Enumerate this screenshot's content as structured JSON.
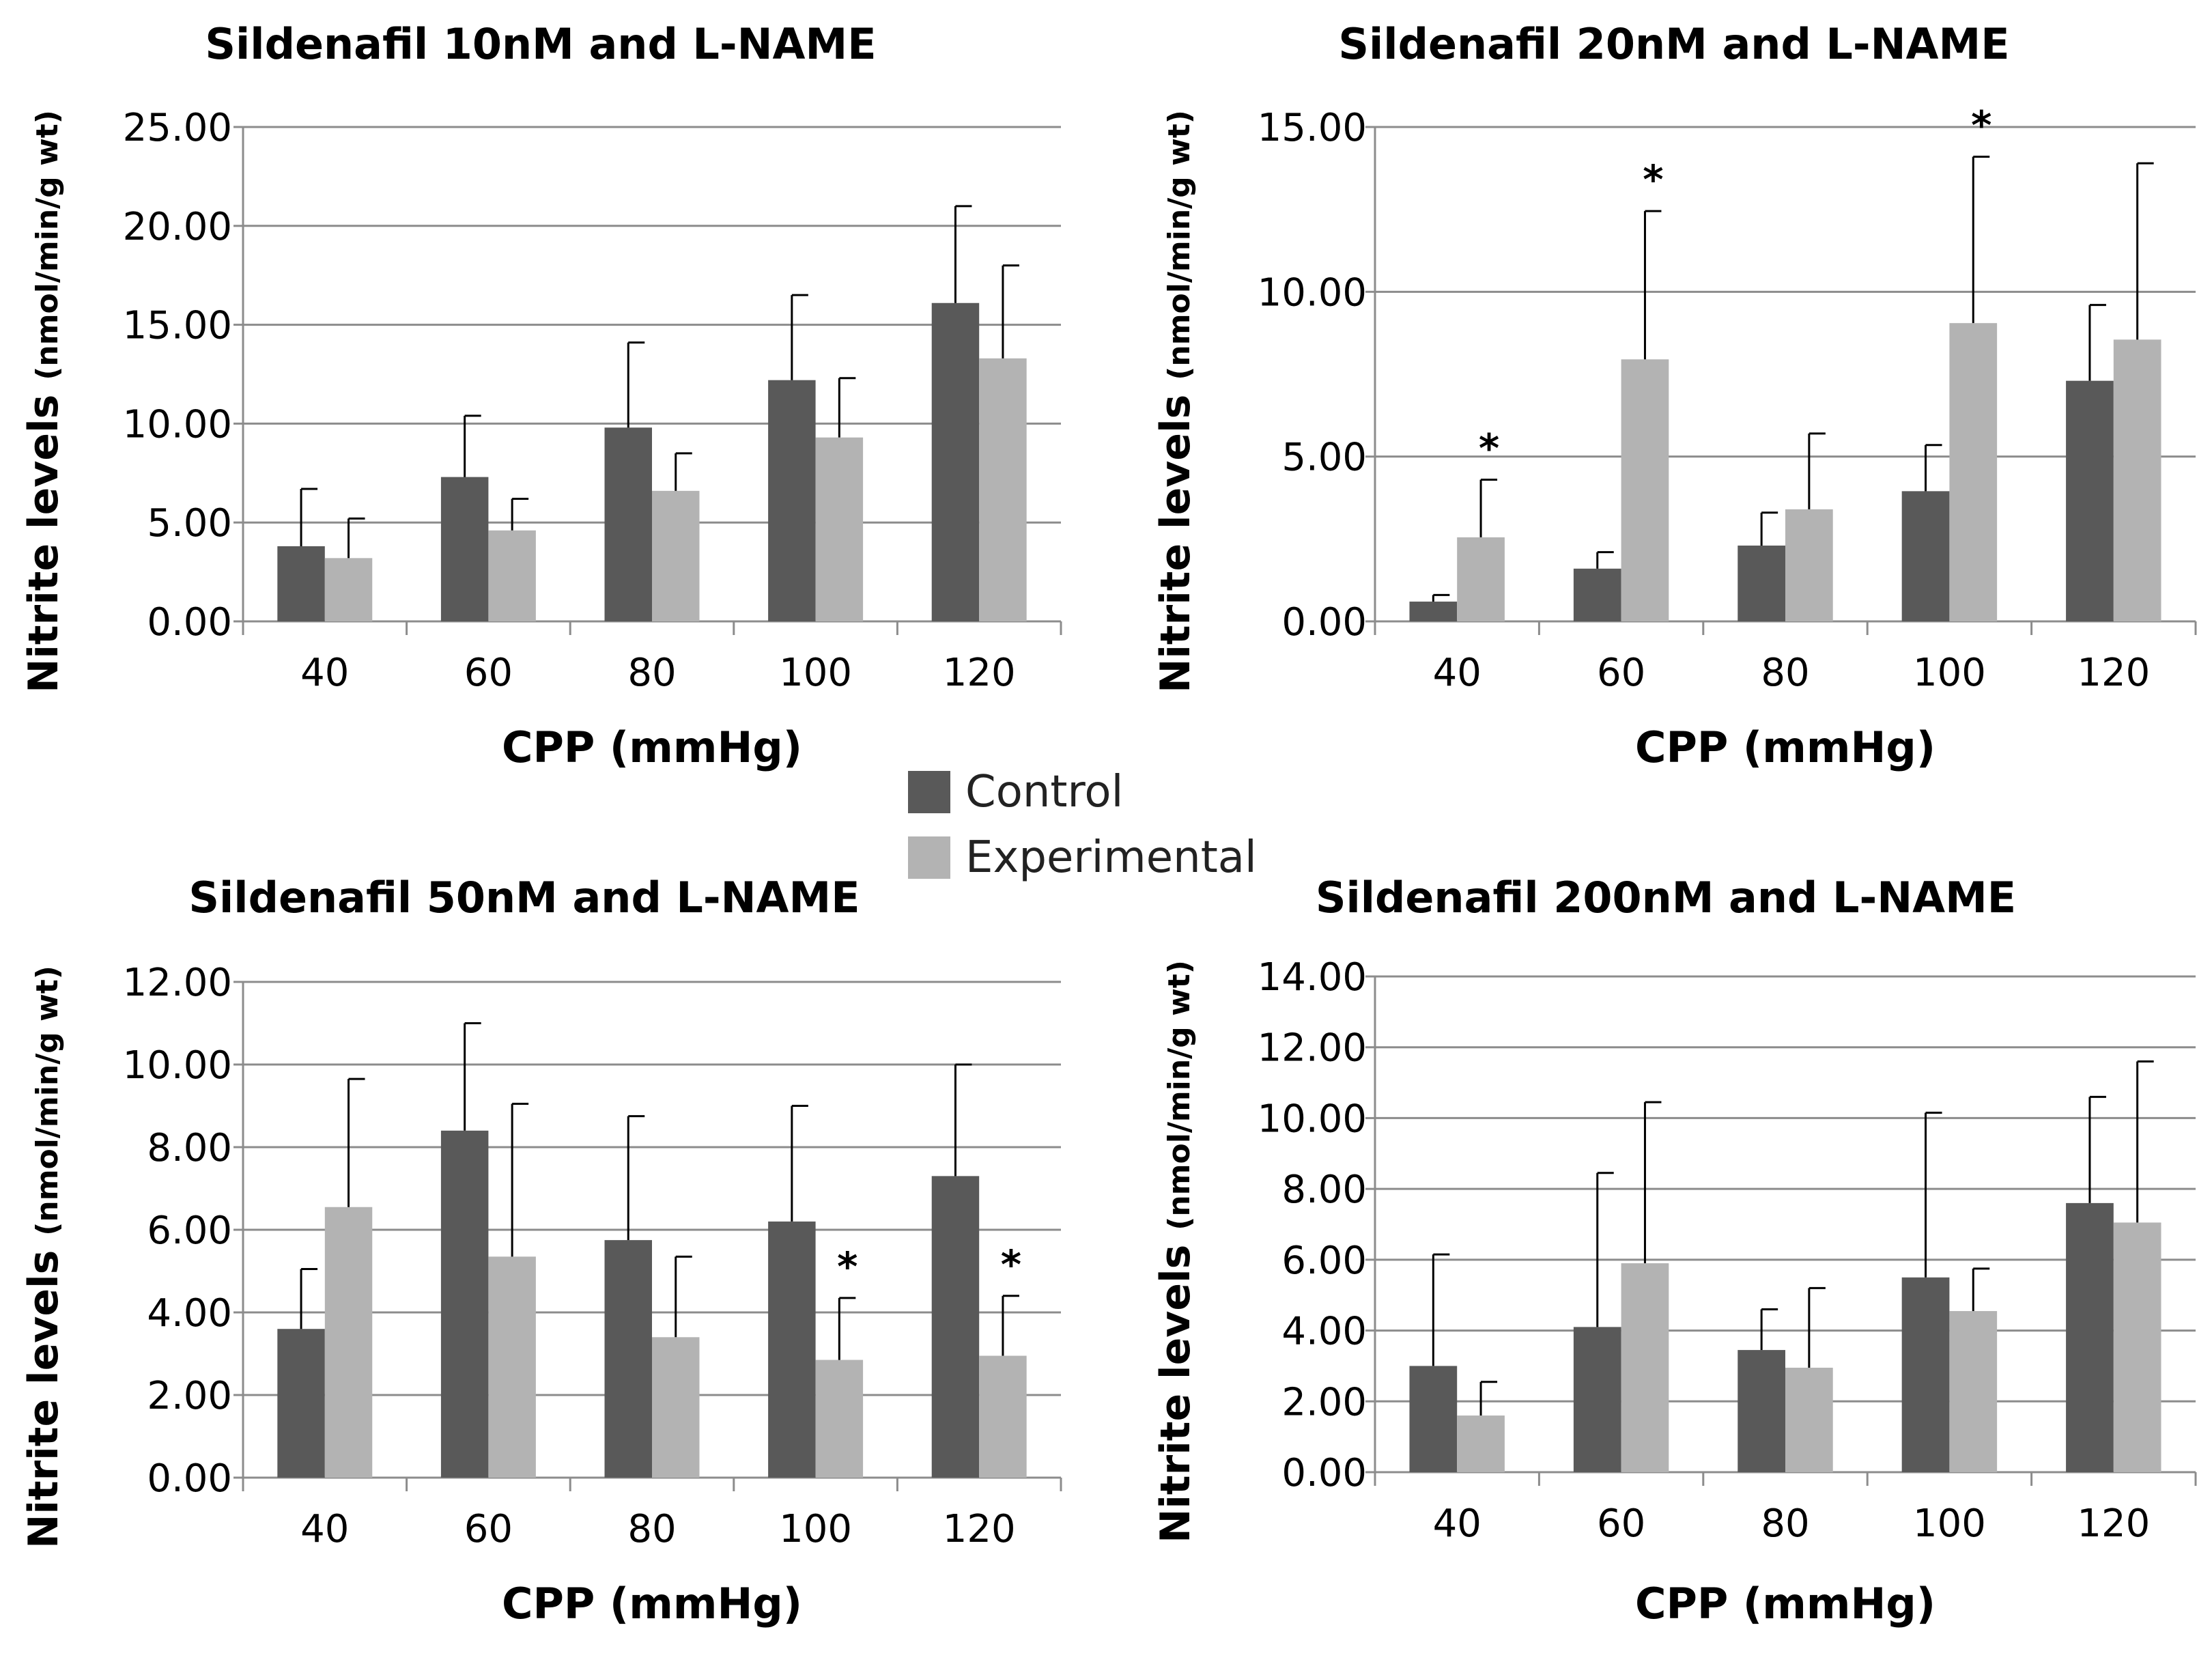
{
  "colors": {
    "control": "#595959",
    "experimental": "#b3b3b3",
    "grid": "#8c8c8c",
    "axis": "#8c8c8c",
    "text": "#000000"
  },
  "legend": {
    "control_label": "Control",
    "experimental_label": "Experimental"
  },
  "chart_data": [
    {
      "type": "bar",
      "title": "Sildenafil 10nM and L-NAME",
      "xlabel": "CPP (mmHg)",
      "ylabel_main": "Nitrite levels",
      "ylabel_unit": "(nmol/min/g wt)",
      "categories": [
        "40",
        "60",
        "80",
        "100",
        "120"
      ],
      "ylim": [
        0,
        25
      ],
      "yticks": [
        "0.00",
        "5.00",
        "10.00",
        "15.00",
        "20.00",
        "25.00"
      ],
      "series": [
        {
          "name": "Control",
          "values": [
            3.8,
            7.3,
            9.8,
            12.2,
            16.1
          ],
          "errors": [
            2.9,
            3.1,
            4.3,
            4.3,
            4.9
          ]
        },
        {
          "name": "Experimental",
          "values": [
            3.2,
            4.6,
            6.6,
            9.3,
            13.3
          ],
          "errors": [
            2.0,
            1.6,
            1.9,
            3.0,
            4.7
          ]
        }
      ],
      "annotations": []
    },
    {
      "type": "bar",
      "title": "Sildenafil 20nM and L-NAME",
      "xlabel": "CPP (mmHg)",
      "ylabel_main": "Nitrite levels",
      "ylabel_unit": "(nmol/min/g wt)",
      "categories": [
        "40",
        "60",
        "80",
        "100",
        "120"
      ],
      "ylim": [
        0,
        15
      ],
      "yticks": [
        "0.00",
        "5.00",
        "10.00",
        "15.00"
      ],
      "series": [
        {
          "name": "Control",
          "values": [
            0.6,
            1.6,
            2.3,
            3.95,
            7.3
          ],
          "errors": [
            0.2,
            0.5,
            1.0,
            1.4,
            2.3
          ]
        },
        {
          "name": "Experimental",
          "values": [
            2.55,
            7.95,
            3.4,
            9.05,
            8.55
          ],
          "errors": [
            1.75,
            4.5,
            2.3,
            5.05,
            5.35
          ]
        }
      ],
      "annotations": [
        {
          "category": "40",
          "series": "Experimental",
          "text": "*"
        },
        {
          "category": "60",
          "series": "Experimental",
          "text": "*"
        },
        {
          "category": "100",
          "series": "Experimental",
          "text": "*"
        }
      ]
    },
    {
      "type": "bar",
      "title": "Sildenafil 50nM and L-NAME",
      "xlabel": "CPP (mmHg)",
      "ylabel_main": "Nitrite levels",
      "ylabel_unit": "(nmol/min/g wt)",
      "categories": [
        "40",
        "60",
        "80",
        "100",
        "120"
      ],
      "ylim": [
        0,
        12
      ],
      "yticks": [
        "0.00",
        "2.00",
        "4.00",
        "6.00",
        "8.00",
        "10.00",
        "12.00"
      ],
      "series": [
        {
          "name": "Control",
          "values": [
            3.6,
            8.4,
            5.75,
            6.2,
            7.3
          ],
          "errors": [
            1.45,
            2.6,
            3.0,
            2.8,
            2.7
          ]
        },
        {
          "name": "Experimental",
          "values": [
            6.55,
            5.35,
            3.4,
            2.85,
            2.95
          ],
          "errors": [
            3.1,
            3.7,
            1.95,
            1.5,
            1.45
          ]
        }
      ],
      "annotations": [
        {
          "category": "100",
          "series": "Experimental",
          "text": "*"
        },
        {
          "category": "120",
          "series": "Experimental",
          "text": "*"
        }
      ]
    },
    {
      "type": "bar",
      "title": "Sildenafil 200nM and L-NAME",
      "xlabel": "CPP (mmHg)",
      "ylabel_main": "Nitrite levels",
      "ylabel_unit": "(nmol/min/g wt)",
      "categories": [
        "40",
        "60",
        "80",
        "100",
        "120"
      ],
      "ylim": [
        0,
        14
      ],
      "yticks": [
        "0.00",
        "2.00",
        "4.00",
        "6.00",
        "8.00",
        "10.00",
        "12.00",
        "14.00"
      ],
      "series": [
        {
          "name": "Control",
          "values": [
            3.0,
            4.1,
            3.45,
            5.5,
            7.6
          ],
          "errors": [
            3.15,
            4.35,
            1.15,
            4.65,
            3.0
          ]
        },
        {
          "name": "Experimental",
          "values": [
            1.6,
            5.9,
            2.95,
            4.55,
            7.05
          ],
          "errors": [
            0.95,
            4.55,
            2.25,
            1.2,
            4.55
          ]
        }
      ],
      "annotations": []
    }
  ]
}
